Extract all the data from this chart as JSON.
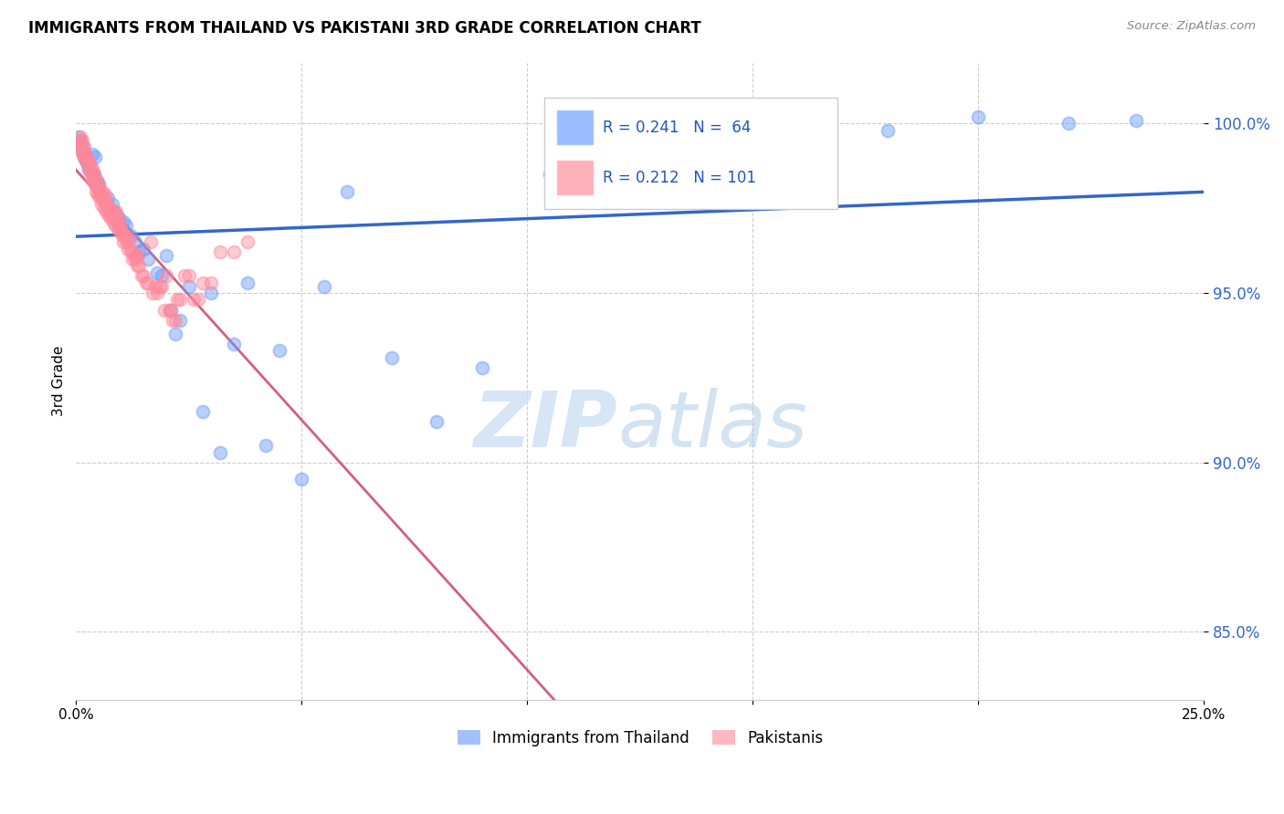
{
  "title": "IMMIGRANTS FROM THAILAND VS PAKISTANI 3RD GRADE CORRELATION CHART",
  "source": "Source: ZipAtlas.com",
  "ylabel": "3rd Grade",
  "y_ticks": [
    85.0,
    90.0,
    95.0,
    100.0
  ],
  "xlim": [
    0.0,
    25.0
  ],
  "ylim": [
    83.0,
    101.8
  ],
  "thailand_color": "#6699ff",
  "pakistani_color": "#ff8899",
  "thailand_line_color": "#3366cc",
  "pakistani_line_color": "#cc4466",
  "thailand_R": 0.241,
  "thailand_N": 64,
  "pakistani_R": 0.212,
  "pakistani_N": 101,
  "thailand_scatter_x": [
    0.05,
    0.08,
    0.1,
    0.12,
    0.15,
    0.18,
    0.2,
    0.22,
    0.25,
    0.28,
    0.3,
    0.32,
    0.35,
    0.38,
    0.4,
    0.42,
    0.45,
    0.48,
    0.5,
    0.55,
    0.6,
    0.65,
    0.7,
    0.75,
    0.8,
    0.85,
    0.9,
    0.95,
    1.0,
    1.05,
    1.1,
    1.2,
    1.3,
    1.4,
    1.5,
    1.6,
    1.8,
    1.9,
    2.0,
    2.1,
    2.2,
    2.3,
    2.5,
    2.8,
    3.0,
    3.2,
    3.5,
    3.8,
    4.2,
    4.5,
    5.0,
    5.5,
    6.0,
    7.0,
    8.0,
    9.0,
    10.5,
    12.0,
    13.0,
    16.0,
    20.0,
    22.0,
    18.0,
    23.5
  ],
  "thailand_scatter_y": [
    99.6,
    99.4,
    99.5,
    99.2,
    99.3,
    99.0,
    99.1,
    98.9,
    98.8,
    98.7,
    98.8,
    98.6,
    99.1,
    98.4,
    98.5,
    99.0,
    98.3,
    98.1,
    98.2,
    97.9,
    97.8,
    97.7,
    97.8,
    97.5,
    97.6,
    97.4,
    97.3,
    97.2,
    96.9,
    97.1,
    97.0,
    96.7,
    96.5,
    96.2,
    96.3,
    96.0,
    95.6,
    95.5,
    96.1,
    94.5,
    93.8,
    94.2,
    95.2,
    91.5,
    95.0,
    90.3,
    93.5,
    95.3,
    90.5,
    93.3,
    89.5,
    95.2,
    98.0,
    93.1,
    91.2,
    92.8,
    98.5,
    98.2,
    99.5,
    99.3,
    100.2,
    100.0,
    99.8,
    100.1
  ],
  "pakistani_scatter_x": [
    0.05,
    0.07,
    0.09,
    0.1,
    0.12,
    0.13,
    0.15,
    0.17,
    0.18,
    0.2,
    0.22,
    0.23,
    0.25,
    0.27,
    0.28,
    0.3,
    0.32,
    0.33,
    0.35,
    0.37,
    0.38,
    0.4,
    0.42,
    0.43,
    0.45,
    0.47,
    0.48,
    0.5,
    0.52,
    0.53,
    0.55,
    0.57,
    0.58,
    0.6,
    0.62,
    0.63,
    0.65,
    0.67,
    0.68,
    0.7,
    0.72,
    0.73,
    0.75,
    0.77,
    0.78,
    0.8,
    0.82,
    0.83,
    0.85,
    0.87,
    0.88,
    0.9,
    0.92,
    0.93,
    0.95,
    0.97,
    0.98,
    1.0,
    1.03,
    1.05,
    1.08,
    1.1,
    1.13,
    1.15,
    1.18,
    1.2,
    1.23,
    1.25,
    1.28,
    1.3,
    1.33,
    1.35,
    1.38,
    1.4,
    1.45,
    1.5,
    1.55,
    1.6,
    1.65,
    1.7,
    1.75,
    1.8,
    1.85,
    1.9,
    1.95,
    2.0,
    2.05,
    2.1,
    2.15,
    2.2,
    2.25,
    2.3,
    2.4,
    2.5,
    2.6,
    2.7,
    2.8,
    3.0,
    3.2,
    3.5,
    3.8
  ],
  "pakistani_scatter_y": [
    99.5,
    99.4,
    99.6,
    99.3,
    99.2,
    99.5,
    99.1,
    99.3,
    99.0,
    99.1,
    98.9,
    99.0,
    98.8,
    98.9,
    98.6,
    98.8,
    98.7,
    98.4,
    98.7,
    98.5,
    98.3,
    98.5,
    98.2,
    98.0,
    98.3,
    98.1,
    97.9,
    98.2,
    97.8,
    98.0,
    97.9,
    97.6,
    98.0,
    97.8,
    97.5,
    97.7,
    97.9,
    97.4,
    97.7,
    97.5,
    97.3,
    97.4,
    97.5,
    97.2,
    97.4,
    97.3,
    97.1,
    97.4,
    97.2,
    97.0,
    97.4,
    97.2,
    96.9,
    97.2,
    97.0,
    96.8,
    97.0,
    96.8,
    96.7,
    96.5,
    96.7,
    96.5,
    96.6,
    96.3,
    96.6,
    96.3,
    96.2,
    96.0,
    96.1,
    96.0,
    96.1,
    95.8,
    96.1,
    95.8,
    95.5,
    95.5,
    95.3,
    95.3,
    96.5,
    95.0,
    95.2,
    95.0,
    95.2,
    95.2,
    94.5,
    95.5,
    94.5,
    94.5,
    94.2,
    94.2,
    94.8,
    94.8,
    95.5,
    95.5,
    94.8,
    94.8,
    95.3,
    95.3,
    96.2,
    96.2,
    96.5
  ]
}
